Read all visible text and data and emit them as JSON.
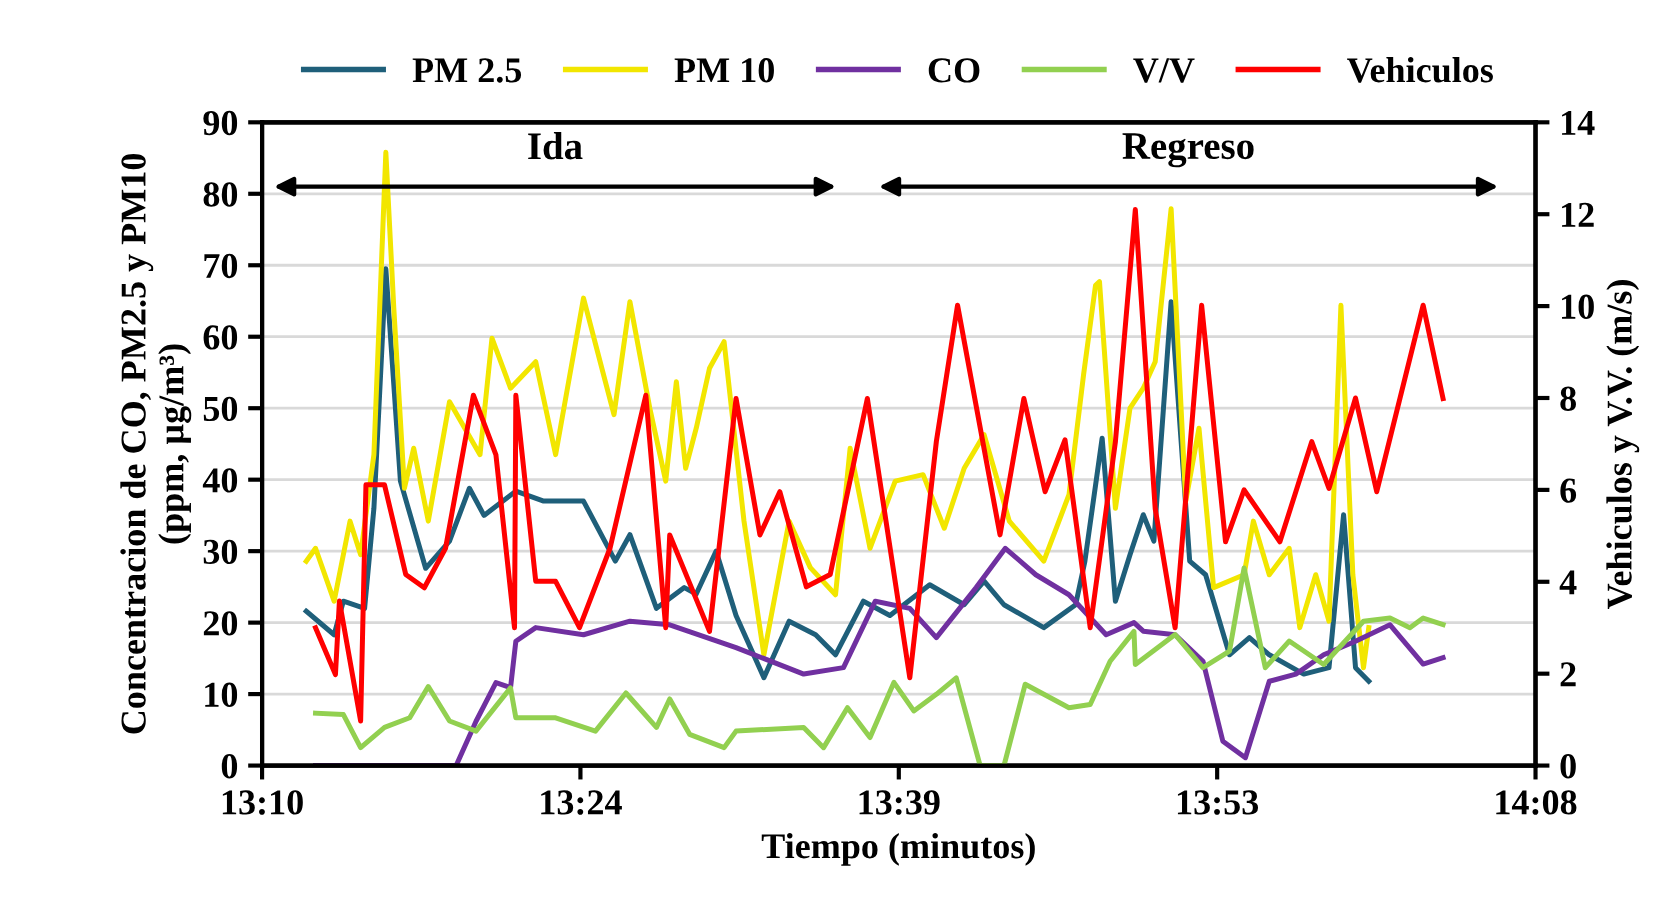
{
  "chart_data": {
    "type": "line",
    "xlabel": "Tiempo (minutos)",
    "ylabel": "Concentracion de CO, PM2.5 y PM10\n(ppm, µg/m³)",
    "y2label": "Vehiculos y V.V. (m/s)",
    "xlim": [
      13.1667,
      14.1267
    ],
    "xticks": [
      {
        "value": 13.1667,
        "label": "13:10"
      },
      {
        "value": 13.4067,
        "label": "13:24"
      },
      {
        "value": 13.6467,
        "label": "13:39"
      },
      {
        "value": 13.8867,
        "label": "13:53"
      },
      {
        "value": 14.1267,
        "label": "14:08"
      }
    ],
    "ylim": [
      0,
      90
    ],
    "yticks": [
      0,
      10,
      20,
      30,
      40,
      50,
      60,
      70,
      80,
      90
    ],
    "y2lim": [
      0,
      14
    ],
    "y2ticks": [
      0,
      2,
      4,
      6,
      8,
      10,
      12,
      14
    ],
    "grid": "y",
    "legend": "top",
    "marker": "none",
    "line_style": "solid",
    "annotations": [
      "Ida",
      "Regreso"
    ],
    "series": [
      {
        "name": "PM 2.5",
        "color": "#1f5f7a",
        "x": [
          13.2,
          13.221,
          13.228,
          13.244,
          13.251,
          13.26,
          13.271,
          13.29,
          13.308,
          13.323,
          13.334,
          13.358,
          13.379,
          13.409,
          13.433,
          13.444,
          13.464,
          13.485,
          13.494,
          13.509,
          13.524,
          13.545,
          13.564,
          13.584,
          13.599,
          13.62,
          13.64,
          13.67,
          13.696,
          13.711,
          13.726,
          13.756,
          13.78,
          13.787,
          13.8,
          13.81,
          13.821,
          13.831,
          13.839,
          13.852,
          13.866,
          13.878,
          13.896,
          13.911,
          13.926,
          13.952,
          13.971,
          13.982,
          13.991,
          14.001
        ],
        "values": [
          21.6,
          18.3,
          23,
          22,
          36,
          69.5,
          39.8,
          27.6,
          31.4,
          38.8,
          35,
          38.4,
          37,
          37,
          28.6,
          32.3,
          22,
          24.9,
          24,
          30,
          21,
          12.3,
          20.2,
          18.3,
          15.5,
          23,
          21,
          25.3,
          22.5,
          25.8,
          22.5,
          19.3,
          22.5,
          28.6,
          45.8,
          23,
          29.5,
          35.1,
          31.4,
          64.9,
          28.6,
          26.7,
          15.5,
          17.9,
          15.5,
          12.8,
          13.7,
          35.1,
          13.7,
          11.8
        ]
      },
      {
        "name": "PM 10",
        "color": "#f2e600",
        "x": [
          13.2,
          13.207,
          13.221,
          13.233,
          13.241,
          13.251,
          13.26,
          13.266,
          13.274,
          13.281,
          13.292,
          13.308,
          13.331,
          13.34,
          13.354,
          13.373,
          13.388,
          13.409,
          13.432,
          13.444,
          13.459,
          13.471,
          13.479,
          13.486,
          13.494,
          13.504,
          13.515,
          13.53,
          13.545,
          13.564,
          13.58,
          13.599,
          13.61,
          13.625,
          13.644,
          13.665,
          13.681,
          13.696,
          13.711,
          13.73,
          13.756,
          13.775,
          13.786,
          13.795,
          13.798,
          13.81,
          13.821,
          13.831,
          13.84,
          13.852,
          13.863,
          13.873,
          13.884,
          13.907,
          13.914,
          13.926,
          13.941,
          13.949,
          13.961,
          13.971,
          13.98,
          13.989,
          13.997,
          14.001
        ],
        "values": [
          28.6,
          30.4,
          23,
          34.2,
          29.5,
          43.5,
          85.8,
          64,
          38.8,
          44.4,
          34.2,
          50.9,
          43.5,
          59.8,
          52.8,
          56.5,
          43.5,
          65.4,
          49.1,
          64.9,
          50,
          39.8,
          53.7,
          41.6,
          47.2,
          55.6,
          59.3,
          34.2,
          15.5,
          34.2,
          27.7,
          23.9,
          44.4,
          30.4,
          39.8,
          40.7,
          33.2,
          41.6,
          46.3,
          34.2,
          28.6,
          37.9,
          54.7,
          67.2,
          67.7,
          36,
          50,
          52.8,
          56.5,
          77.9,
          37,
          47.2,
          24.9,
          26.7,
          34.2,
          26.7,
          30.4,
          19.3,
          26.7,
          20.2,
          64.4,
          26.7,
          13.7,
          19.3
        ]
      },
      {
        "name": "CO",
        "color": "#7030a0",
        "x": [
          13.207,
          13.313,
          13.328,
          13.343,
          13.354,
          13.358,
          13.373,
          13.409,
          13.444,
          13.474,
          13.524,
          13.575,
          13.605,
          13.629,
          13.655,
          13.675,
          13.705,
          13.727,
          13.75,
          13.775,
          13.803,
          13.824,
          13.831,
          13.855,
          13.876,
          13.891,
          13.908,
          13.926,
          13.946,
          13.967,
          13.991,
          14.017,
          14.042,
          14.057
        ],
        "values": [
          0,
          0,
          6.2,
          11.6,
          10.9,
          17.4,
          19.3,
          18.3,
          20.2,
          19.7,
          16.5,
          12.8,
          13.7,
          23,
          22,
          17.9,
          24.9,
          30.4,
          26.7,
          23.9,
          18.3,
          20,
          18.8,
          18.3,
          14.6,
          3.4,
          1.1,
          11.8,
          12.8,
          15.5,
          17.4,
          19.7,
          14.2,
          15.1
        ]
      },
      {
        "name": "V/V",
        "color": "#92d050",
        "axis": "y2",
        "x": [
          13.207,
          13.228,
          13.241,
          13.259,
          13.278,
          13.292,
          13.308,
          13.328,
          13.354,
          13.358,
          13.388,
          13.418,
          13.441,
          13.464,
          13.474,
          13.489,
          13.515,
          13.524,
          13.575,
          13.59,
          13.608,
          13.625,
          13.643,
          13.658,
          13.675,
          13.69,
          13.708,
          13.726,
          13.742,
          13.775,
          13.791,
          13.806,
          13.824,
          13.825,
          13.855,
          13.876,
          13.896,
          13.907,
          13.923,
          13.941,
          13.967,
          13.997,
          14.017,
          14.032,
          14.042,
          14.057
        ],
        "values": [
          1.14,
          1.11,
          0.39,
          0.83,
          1.04,
          1.72,
          0.97,
          0.75,
          1.69,
          1.04,
          1.04,
          0.75,
          1.58,
          0.83,
          1.45,
          0.68,
          0.39,
          0.75,
          0.83,
          0.39,
          1.26,
          0.61,
          1.81,
          1.19,
          1.55,
          1.91,
          0,
          0,
          1.77,
          1.26,
          1.33,
          2.27,
          2.92,
          2.2,
          2.85,
          2.13,
          2.49,
          4.3,
          2.13,
          2.71,
          2.2,
          3.14,
          3.21,
          3,
          3.21,
          3.07
        ]
      },
      {
        "name": "Vehiculos",
        "color": "#ff0000",
        "axis": "y2",
        "x": [
          13.207,
          13.222,
          13.225,
          13.241,
          13.245,
          13.259,
          13.275,
          13.289,
          13.305,
          13.326,
          13.343,
          13.357,
          13.358,
          13.373,
          13.388,
          13.406,
          13.429,
          13.456,
          13.471,
          13.474,
          13.504,
          13.524,
          13.542,
          13.557,
          13.577,
          13.595,
          13.623,
          13.655,
          13.675,
          13.691,
          13.723,
          13.741,
          13.757,
          13.772,
          13.791,
          13.81,
          13.825,
          13.84,
          13.855,
          13.875,
          13.893,
          13.907,
          13.934,
          13.958,
          13.971,
          13.991,
          14.007,
          14.042,
          14.057
        ],
        "values": [
          3.0,
          1.98,
          3.58,
          0.97,
          6.11,
          6.11,
          4.16,
          3.87,
          4.73,
          8.06,
          6.76,
          3.0,
          8.06,
          4.01,
          4.01,
          3.0,
          4.73,
          8.06,
          3.0,
          5.02,
          2.92,
          7.99,
          5.02,
          5.96,
          3.89,
          4.16,
          7.99,
          1.91,
          7.05,
          10.02,
          5.02,
          7.99,
          5.96,
          7.09,
          3.0,
          7.05,
          12.1,
          5.59,
          3.0,
          10.02,
          4.87,
          6.0,
          4.87,
          7.05,
          6.03,
          8.0,
          5.96,
          10.02,
          7.99
        ]
      }
    ]
  }
}
